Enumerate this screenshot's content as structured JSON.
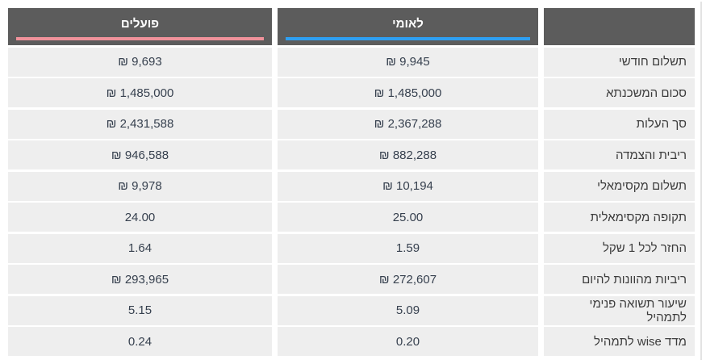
{
  "header": {
    "columns": [
      {
        "key": "poalim",
        "label": "פועלים",
        "underline_color": "#f0929b"
      },
      {
        "key": "leumi",
        "label": "לאומי",
        "underline_color": "#2e9ff2"
      },
      {
        "key": "metric",
        "label": ""
      }
    ]
  },
  "rows": [
    {
      "metric": "תשלום חודשי",
      "leumi": "₪ 9,945",
      "poalim": "₪ 9,693"
    },
    {
      "metric": "סכום המשכנתא",
      "leumi": "₪ 1,485,000",
      "poalim": "₪ 1,485,000"
    },
    {
      "metric": "סך העלות",
      "leumi": "₪ 2,367,288",
      "poalim": "₪ 2,431,588"
    },
    {
      "metric": "ריבית והצמדה",
      "leumi": "₪ 882,288",
      "poalim": "₪ 946,588"
    },
    {
      "metric": "תשלום מקסימאלי",
      "leumi": "₪ 10,194",
      "poalim": "₪ 9,978"
    },
    {
      "metric": "תקופה מקסימאלית",
      "leumi": "25.00",
      "poalim": "24.00"
    },
    {
      "metric": "החזר לכל 1 שקל",
      "leumi": "1.59",
      "poalim": "1.64"
    },
    {
      "metric": "ריביות מהוונות להיום",
      "leumi": "₪ 272,607",
      "poalim": "₪ 293,965"
    },
    {
      "metric": "שיעור תשואה פנימי לתמהיל",
      "leumi": "5.09",
      "poalim": "5.15"
    },
    {
      "metric": "מדד wise לתמהיל",
      "leumi": "0.20",
      "poalim": "0.24"
    }
  ],
  "colors": {
    "header_background": "#5c5c5c",
    "row_background": "#eeeeee",
    "poalim_accent": "#f0929b",
    "leumi_accent": "#2e9ff2",
    "value_text": "#37414f",
    "label_text": "#3c3c3c"
  }
}
